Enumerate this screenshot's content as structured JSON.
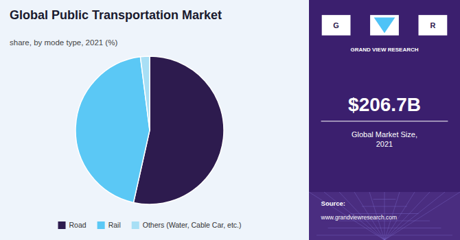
{
  "chart_data": {
    "type": "pie",
    "title": "Global Public Transportation Market",
    "subtitle": "share, by mode type, 2021 (%)",
    "categories": [
      "Road",
      "Rail",
      "Others (Water, Cable Car, etc.)"
    ],
    "values": [
      53.5,
      44.5,
      2.0
    ],
    "colors": [
      "#2d1b4e",
      "#5bc8f5",
      "#a8dff5"
    ],
    "legend": "bottom",
    "annotations": [
      "G",
      "R",
      "GRAND VIEW RESEARCH",
      "$206.7B",
      "Global Market Size,\n2021",
      "Source:",
      "www.grandviewresearch.com"
    ]
  }
}
